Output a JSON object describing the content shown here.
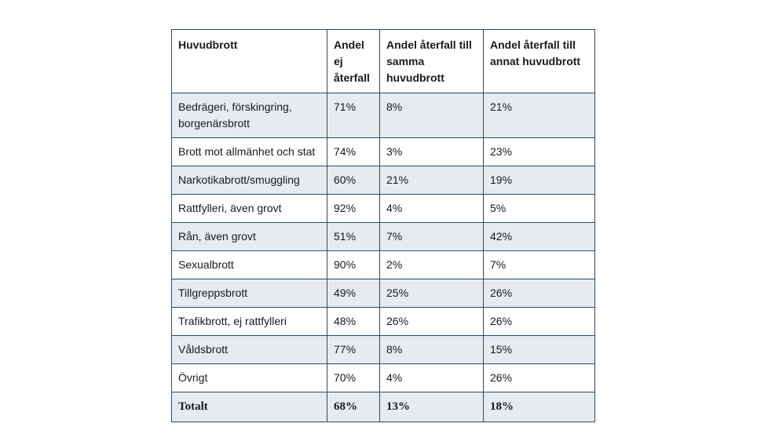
{
  "table": {
    "headers": [
      "Huvudbrott",
      "Andel ej återfall",
      "Andel återfall till samma huvudbrott",
      "Andel återfall till annat huvudbrott"
    ],
    "rows": [
      [
        "Bedrägeri, förskingring, borgenärsbrott",
        "71%",
        "8%",
        "21%"
      ],
      [
        "Brott mot allmänhet och stat",
        "74%",
        "3%",
        "23%"
      ],
      [
        "Narkotikabrott/smuggling",
        "60%",
        "21%",
        "19%"
      ],
      [
        "Rattfylleri, även grovt",
        "92%",
        "4%",
        "5%"
      ],
      [
        "Rån, även grovt",
        "51%",
        "7%",
        "42%"
      ],
      [
        "Sexualbrott",
        "90%",
        "2%",
        "7%"
      ],
      [
        "Tillgreppsbrott",
        "49%",
        "25%",
        "26%"
      ],
      [
        "Trafikbrott, ej rattfylleri",
        "48%",
        "26%",
        "26%"
      ],
      [
        "Våldsbrott",
        "77%",
        "8%",
        "15%"
      ],
      [
        "Övrigt",
        "70%",
        "4%",
        "26%"
      ]
    ],
    "total": [
      "Totalt",
      "68%",
      "13%",
      "18%"
    ]
  },
  "colors": {
    "border": "#2e4a64",
    "shaded_row": "#e6ebf0"
  }
}
